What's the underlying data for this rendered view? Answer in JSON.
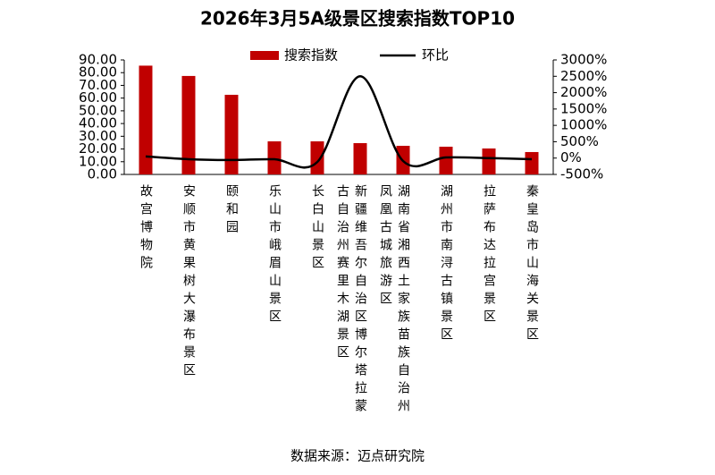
{
  "chart_data": {
    "type": "bar",
    "title": "2026年3月5A级景区搜索指数TOP10",
    "categories": [
      "故宫博物院",
      "安顺市黄果树大瀑布景区",
      "颐和园",
      "乐山市峨眉山景区",
      "长白山景区",
      "新疆维吾尔自治区博尔塔拉蒙古自治州赛里木湖景区",
      "湖南省湘西土家族苗族自治州凤凰古城旅游区",
      "湖州市南浔古镇景区",
      "拉萨布达拉宫景区",
      "秦皇岛市山海关景区"
    ],
    "series": [
      {
        "name": "搜索指数",
        "type": "bar",
        "color": "#c00000",
        "values": [
          85.5,
          77.4,
          62.6,
          26.0,
          26.0,
          24.6,
          22.5,
          21.8,
          20.4,
          17.6
        ]
      },
      {
        "name": "环比",
        "type": "line",
        "axis": "y2",
        "color": "#000000",
        "values": [
          50,
          -35,
          -60,
          -35,
          -120,
          2500,
          -90,
          20,
          0,
          -35
        ]
      }
    ],
    "ylim": [
      0,
      90
    ],
    "yticks": [
      {
        "value": 0,
        "label": "0.00"
      },
      {
        "value": 10,
        "label": "10.00"
      },
      {
        "value": 20,
        "label": "20.00"
      },
      {
        "value": 30,
        "label": "30.00"
      },
      {
        "value": 40,
        "label": "40.00"
      },
      {
        "value": 50,
        "label": "50.00"
      },
      {
        "value": 60,
        "label": "60.00"
      },
      {
        "value": 70,
        "label": "70.00"
      },
      {
        "value": 80,
        "label": "80.00"
      },
      {
        "value": 90,
        "label": "90.00"
      }
    ],
    "y2lim": [
      -500,
      3000
    ],
    "y2ticks": [
      {
        "value": -500,
        "label": "-500%"
      },
      {
        "value": 0,
        "label": "0%"
      },
      {
        "value": 500,
        "label": "500%"
      },
      {
        "value": 1000,
        "label": "1000%"
      },
      {
        "value": 1500,
        "label": "1500%"
      },
      {
        "value": 2000,
        "label": "2000%"
      },
      {
        "value": 2500,
        "label": "2500%"
      },
      {
        "value": 3000,
        "label": "3000%"
      }
    ],
    "legend": "top",
    "source": "数据来源：迈点研究院"
  }
}
